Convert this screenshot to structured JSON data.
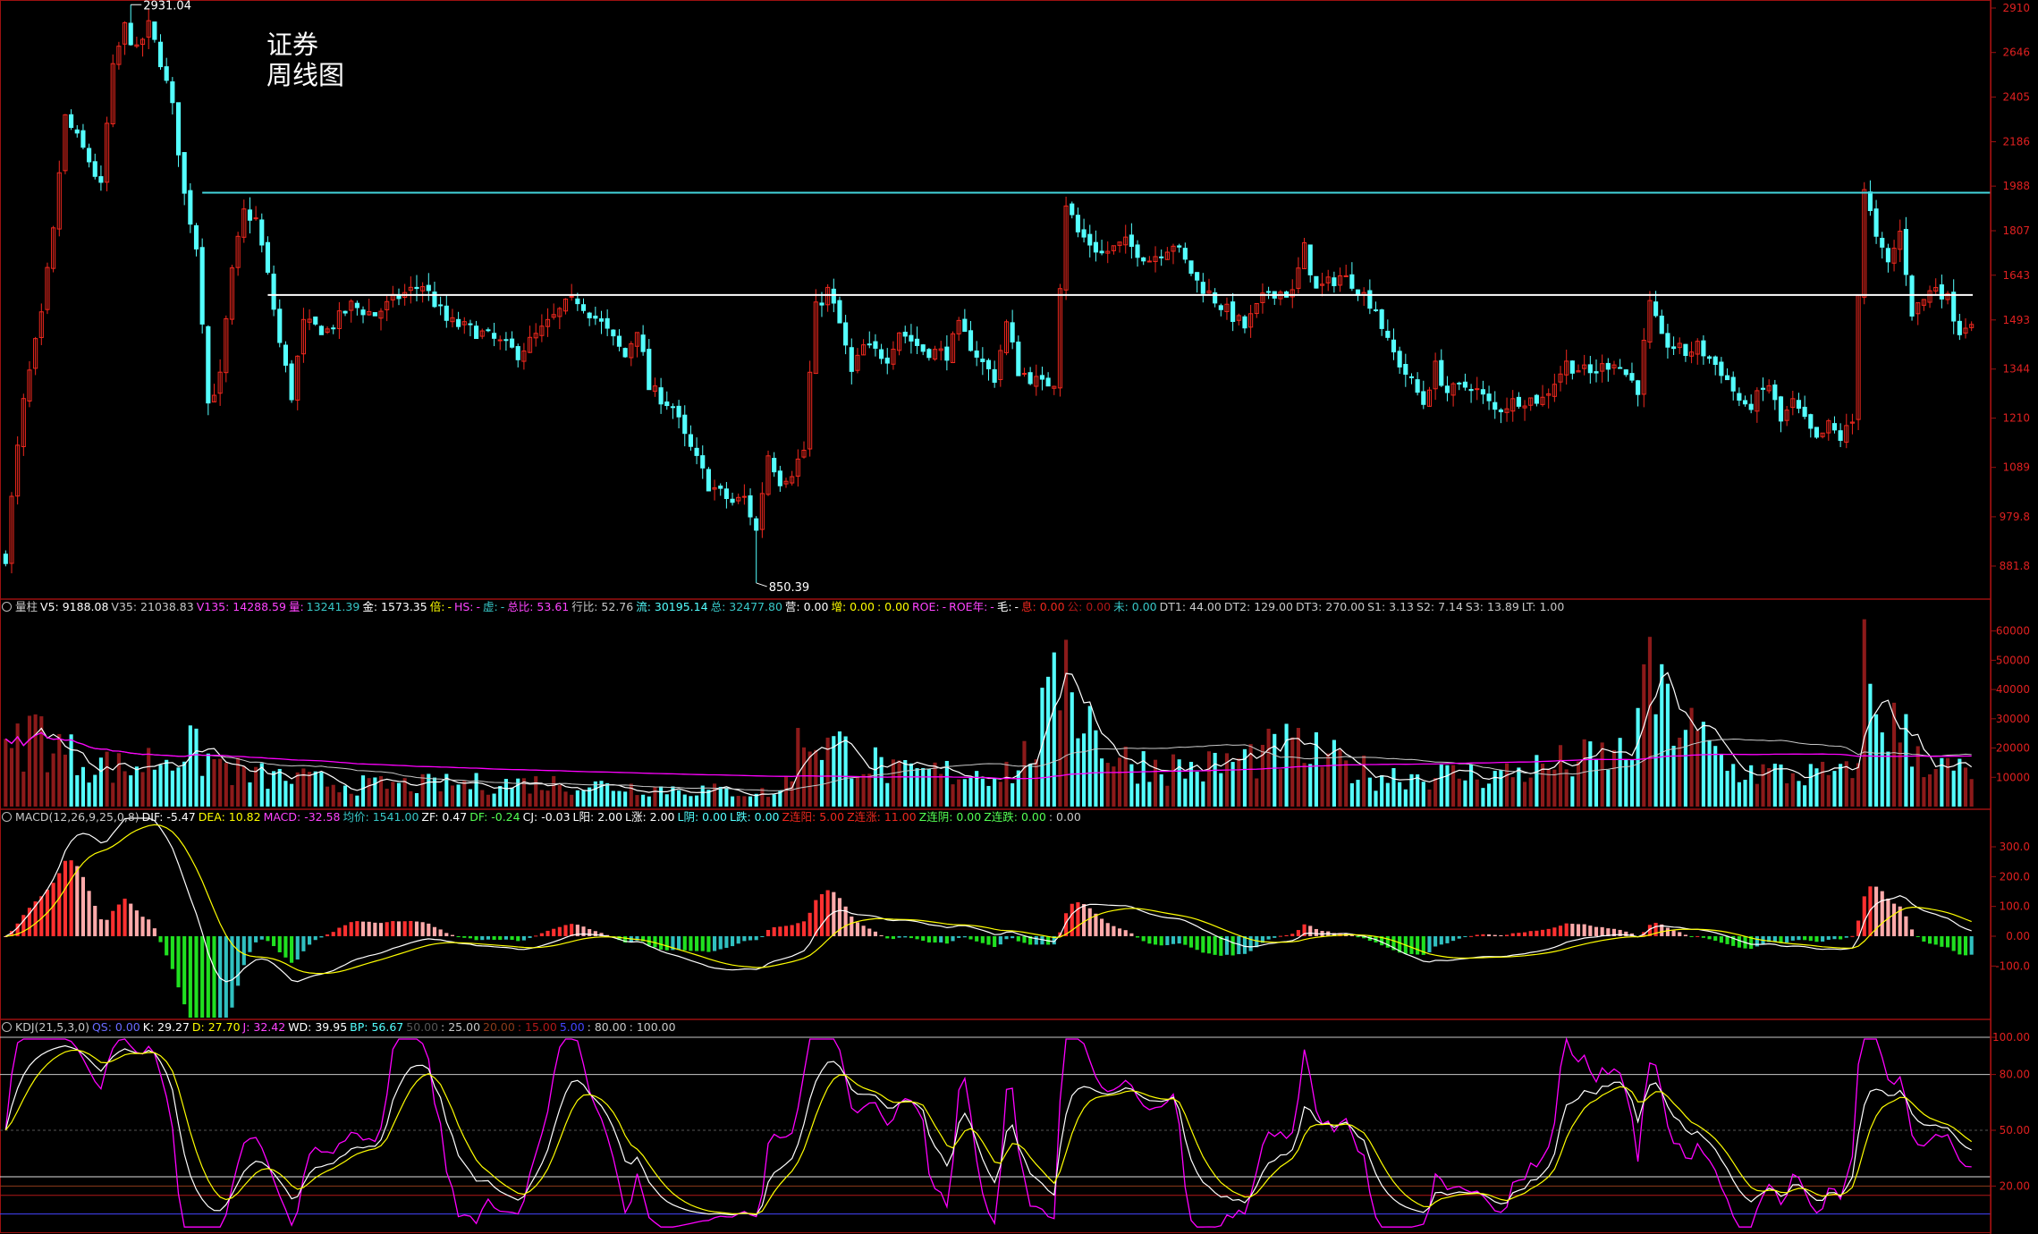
{
  "overlay": {
    "title_line1": "证券",
    "title_line2": "周线图"
  },
  "colors": {
    "up": "#f0281e",
    "up_dark": "#8c1a1a",
    "down": "#54ffff",
    "ma_white": "#ffffff",
    "ma_yellow": "#ffff00",
    "ma_magenta": "#ff00ff",
    "frame": "#9c1010",
    "level_cyan": "#43d6de",
    "level_white": "#ffffff"
  },
  "main": {
    "high_label": "2931.04",
    "low_label": "850.39",
    "y_ticks": [
      "2910",
      "2646",
      "2405",
      "2186",
      "1988",
      "1807",
      "1643",
      "1493",
      "1344",
      "1210",
      "1089",
      "979.8",
      "881.8"
    ]
  },
  "volume_info": [
    {
      "text": "量柱",
      "color": "#c8c8c8"
    },
    {
      "text": "V5: 9188.08",
      "color": "#ffffff"
    },
    {
      "text": "V35: 21038.83",
      "color": "#c8c8c8"
    },
    {
      "text": "V135: 14288.59",
      "color": "#ff44ff"
    },
    {
      "text": "量:",
      "color": "#ff44ff"
    },
    {
      "text": "13241.39",
      "color": "#38c8c8"
    },
    {
      "text": "金: 1573.35",
      "color": "#ffffff"
    },
    {
      "text": "倍:",
      "color": "#ffff00"
    },
    {
      "text": "-",
      "color": "#ffff00"
    },
    {
      "text": "HS:",
      "color": "#ff44ff"
    },
    {
      "text": "-",
      "color": "#ff44ff"
    },
    {
      "text": "虚:",
      "color": "#38c8c8"
    },
    {
      "text": "-",
      "color": "#38c8c8"
    },
    {
      "text": "总比: 53.61",
      "color": "#ff44ff"
    },
    {
      "text": "行比: 52.76",
      "color": "#c8c8c8"
    },
    {
      "text": "流: 30195.14",
      "color": "#54ffff"
    },
    {
      "text": "总: 32477.80",
      "color": "#38c8c8"
    },
    {
      "text": "营: 0.00",
      "color": "#ffffff"
    },
    {
      "text": "增: 0.00",
      "color": "#ffff00"
    },
    {
      "text": ": 0.00",
      "color": "#ffff00"
    },
    {
      "text": "ROE:",
      "color": "#ff44ff"
    },
    {
      "text": "-",
      "color": "#ff44ff"
    },
    {
      "text": "ROE年:",
      "color": "#ff44ff"
    },
    {
      "text": "-",
      "color": "#ff44ff"
    },
    {
      "text": "毛:",
      "color": "#ffffff"
    },
    {
      "text": "-",
      "color": "#ffffff"
    },
    {
      "text": "息: 0.00",
      "color": "#f0281e"
    },
    {
      "text": "公: 0.00",
      "color": "#b01818"
    },
    {
      "text": "未: 0.00",
      "color": "#38c8c8"
    },
    {
      "text": "DT1: 44.00",
      "color": "#c8c8c8"
    },
    {
      "text": "DT2: 129.00",
      "color": "#c8c8c8"
    },
    {
      "text": "DT3: 270.00",
      "color": "#c8c8c8"
    },
    {
      "text": "S1: 3.13",
      "color": "#c8c8c8"
    },
    {
      "text": "S2: 7.14",
      "color": "#c8c8c8"
    },
    {
      "text": "S3: 13.89",
      "color": "#c8c8c8"
    },
    {
      "text": "LT: 1.00",
      "color": "#c8c8c8"
    }
  ],
  "volume_ticks": [
    "60000",
    "50000",
    "40000",
    "30000",
    "20000",
    "10000"
  ],
  "macd_info": [
    {
      "text": "MACD(12,26,9,25,0,8)",
      "color": "#c8c8c8"
    },
    {
      "text": "DIF: -5.47",
      "color": "#ffffff"
    },
    {
      "text": "DEA: 10.82",
      "color": "#ffff00"
    },
    {
      "text": "MACD: -32.58",
      "color": "#ff44ff"
    },
    {
      "text": "均价: 1541.00",
      "color": "#38c8c8"
    },
    {
      "text": "ZF: 0.47",
      "color": "#ffffff"
    },
    {
      "text": "DF: -0.24",
      "color": "#54ff54"
    },
    {
      "text": "CJ: -0.03",
      "color": "#ffffff"
    },
    {
      "text": "L阳: 2.00",
      "color": "#ffffff"
    },
    {
      "text": "L涨: 2.00",
      "color": "#ffffff"
    },
    {
      "text": "L阴: 0.00",
      "color": "#54ffff"
    },
    {
      "text": "L跌: 0.00",
      "color": "#54ffff"
    },
    {
      "text": "Z连阳: 5.00",
      "color": "#f0281e"
    },
    {
      "text": "Z连涨: 11.00",
      "color": "#f0281e"
    },
    {
      "text": "Z连阴: 0.00",
      "color": "#54ff54"
    },
    {
      "text": "Z连跌: 0.00",
      "color": "#54ff54"
    },
    {
      "text": ": 0.00",
      "color": "#c8c8c8"
    }
  ],
  "macd_ticks": [
    "300.0",
    "200.0",
    "100.0",
    "0.00",
    "-100.0"
  ],
  "kdj_info": [
    {
      "text": "KDJ(21,5,3,0)",
      "color": "#c8c8c8"
    },
    {
      "text": "QS: 0.00",
      "color": "#6a6aff"
    },
    {
      "text": "K: 29.27",
      "color": "#ffffff"
    },
    {
      "text": "D: 27.70",
      "color": "#ffff00"
    },
    {
      "text": "J: 32.42",
      "color": "#ff44ff"
    },
    {
      "text": "WD: 39.95",
      "color": "#ffffff"
    },
    {
      "text": "BP: 56.67",
      "color": "#54ffff"
    },
    {
      "text": "50.00",
      "color": "#555555"
    },
    {
      "text": ": 25.00",
      "color": "#c8c8c8"
    },
    {
      "text": "20.00",
      "color": "#8c3a1a"
    },
    {
      "text": ": 15.00",
      "color": "#b01818"
    },
    {
      "text": "5.00",
      "color": "#4444ff"
    },
    {
      "text": ": 80.00",
      "color": "#c8c8c8"
    },
    {
      "text": ": 100.00",
      "color": "#c8c8c8"
    }
  ],
  "kdj_ticks": [
    "100.00",
    "80.00",
    "50.00",
    "20.00"
  ],
  "chart_data": {
    "type": "candlestick",
    "period": "weekly",
    "price_axis": [
      2910,
      2646,
      2405,
      2186,
      1988,
      1807,
      1643,
      1493,
      1344,
      1210,
      1089,
      979.8,
      881.8
    ],
    "high_marker": 2931.04,
    "low_marker": 850.39,
    "horizontal_levels": [
      1960,
      1575
    ],
    "anchors": [
      [
        0,
        900
      ],
      [
        3,
        1250
      ],
      [
        6,
        1500
      ],
      [
        8,
        1800
      ],
      [
        10,
        2300
      ],
      [
        14,
        2100
      ],
      [
        16,
        1980
      ],
      [
        18,
        2550
      ],
      [
        20,
        2800
      ],
      [
        22,
        2650
      ],
      [
        24,
        2800
      ],
      [
        26,
        2600
      ],
      [
        28,
        2350
      ],
      [
        30,
        1950
      ],
      [
        32,
        1750
      ],
      [
        34,
        1250
      ],
      [
        36,
        1320
      ],
      [
        38,
        1650
      ],
      [
        40,
        1880
      ],
      [
        42,
        1850
      ],
      [
        44,
        1640
      ],
      [
        46,
        1420
      ],
      [
        48,
        1270
      ],
      [
        50,
        1480
      ],
      [
        54,
        1460
      ],
      [
        58,
        1540
      ],
      [
        62,
        1510
      ],
      [
        66,
        1570
      ],
      [
        70,
        1610
      ],
      [
        74,
        1490
      ],
      [
        80,
        1450
      ],
      [
        86,
        1390
      ],
      [
        90,
        1460
      ],
      [
        94,
        1540
      ],
      [
        96,
        1560
      ],
      [
        100,
        1480
      ],
      [
        104,
        1380
      ],
      [
        106,
        1470
      ],
      [
        108,
        1290
      ],
      [
        112,
        1240
      ],
      [
        114,
        1160
      ],
      [
        118,
        1050
      ],
      [
        122,
        1010
      ],
      [
        124,
        1020
      ],
      [
        126,
        950
      ],
      [
        128,
        1120
      ],
      [
        130,
        1060
      ],
      [
        132,
        1080
      ],
      [
        134,
        1130
      ],
      [
        136,
        1530
      ],
      [
        138,
        1590
      ],
      [
        140,
        1480
      ],
      [
        142,
        1330
      ],
      [
        144,
        1410
      ],
      [
        148,
        1380
      ],
      [
        150,
        1460
      ],
      [
        154,
        1400
      ],
      [
        158,
        1390
      ],
      [
        160,
        1470
      ],
      [
        164,
        1360
      ],
      [
        166,
        1320
      ],
      [
        168,
        1480
      ],
      [
        170,
        1340
      ],
      [
        174,
        1300
      ],
      [
        176,
        1310
      ],
      [
        178,
        1920
      ],
      [
        180,
        1800
      ],
      [
        184,
        1720
      ],
      [
        188,
        1760
      ],
      [
        192,
        1700
      ],
      [
        196,
        1760
      ],
      [
        200,
        1620
      ],
      [
        204,
        1540
      ],
      [
        208,
        1470
      ],
      [
        212,
        1590
      ],
      [
        216,
        1580
      ],
      [
        218,
        1740
      ],
      [
        220,
        1590
      ],
      [
        224,
        1640
      ],
      [
        226,
        1620
      ],
      [
        230,
        1530
      ],
      [
        232,
        1420
      ],
      [
        234,
        1360
      ],
      [
        238,
        1250
      ],
      [
        240,
        1350
      ],
      [
        242,
        1280
      ],
      [
        246,
        1300
      ],
      [
        250,
        1230
      ],
      [
        254,
        1260
      ],
      [
        258,
        1260
      ],
      [
        262,
        1360
      ],
      [
        266,
        1330
      ],
      [
        270,
        1370
      ],
      [
        274,
        1290
      ],
      [
        276,
        1540
      ],
      [
        278,
        1430
      ],
      [
        282,
        1390
      ],
      [
        284,
        1410
      ],
      [
        288,
        1340
      ],
      [
        292,
        1230
      ],
      [
        296,
        1300
      ],
      [
        298,
        1200
      ],
      [
        300,
        1250
      ],
      [
        304,
        1150
      ],
      [
        306,
        1190
      ],
      [
        308,
        1160
      ],
      [
        310,
        1200
      ],
      [
        312,
        1980
      ],
      [
        314,
        1770
      ],
      [
        316,
        1680
      ],
      [
        318,
        1800
      ],
      [
        320,
        1520
      ],
      [
        322,
        1560
      ],
      [
        324,
        1610
      ],
      [
        326,
        1560
      ],
      [
        328,
        1460
      ],
      [
        330,
        1500
      ]
    ],
    "volume_axis": [
      60000,
      50000,
      40000,
      30000,
      20000,
      10000
    ],
    "volume_anchors": [
      [
        0,
        18000
      ],
      [
        5,
        30000
      ],
      [
        10,
        20000
      ],
      [
        20,
        14000
      ],
      [
        30,
        22000
      ],
      [
        40,
        12000
      ],
      [
        60,
        8000
      ],
      [
        90,
        9000
      ],
      [
        110,
        7000
      ],
      [
        130,
        5000
      ],
      [
        134,
        28000
      ],
      [
        140,
        22000
      ],
      [
        150,
        12000
      ],
      [
        170,
        14000
      ],
      [
        178,
        48000
      ],
      [
        186,
        18000
      ],
      [
        200,
        14000
      ],
      [
        216,
        22000
      ],
      [
        230,
        12000
      ],
      [
        250,
        12000
      ],
      [
        272,
        20000
      ],
      [
        276,
        42000
      ],
      [
        290,
        14000
      ],
      [
        300,
        12000
      ],
      [
        310,
        12000
      ],
      [
        312,
        42000
      ],
      [
        316,
        32000
      ],
      [
        324,
        15000
      ],
      [
        330,
        12000
      ]
    ],
    "macd_axis": [
      300,
      200,
      100,
      0,
      -100
    ],
    "kdj_axis": [
      100,
      80,
      50,
      20
    ],
    "kdj_reference_lines": [
      100,
      80,
      50,
      25,
      20,
      15,
      5
    ]
  }
}
